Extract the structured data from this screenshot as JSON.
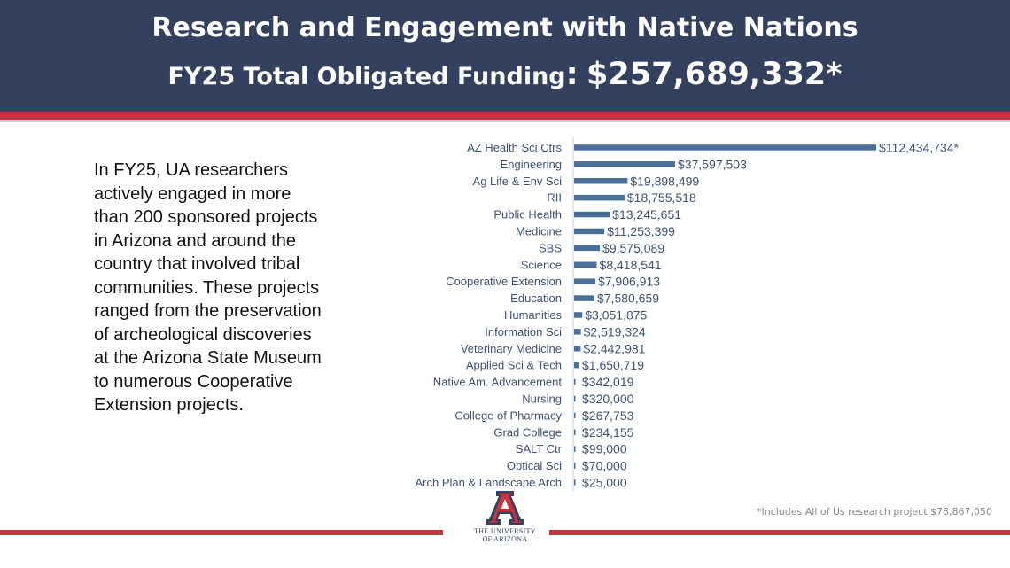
{
  "header": {
    "title": "Research and Engagement with Native Nations",
    "subtitle_prefix": "FY25 Total Obligated Funding",
    "subtitle_colon": ":",
    "subtitle_amount": "$257,689,332*"
  },
  "intro_text": "In FY25, UA researchers actively engaged in more than 200 sponsored projects in Arizona and around the country that involved tribal communities. These projects ranged from the preservation of archeological discoveries at the Arizona State Museum to numerous Cooperative Extension projects.",
  "footnote": "*Includes All of Us research project $78,867,050",
  "logo": {
    "letter": "A",
    "line1": "THE UNIVERSITY",
    "line2": "OF ARIZONA"
  },
  "colors": {
    "header_bg": "#33415f",
    "accent_red": "#c8333f",
    "bar": "#4a6f98",
    "label_text": "#3f5274"
  },
  "chart_data": {
    "type": "bar",
    "orientation": "horizontal",
    "categories": [
      "AZ Health Sci Ctrs",
      "Engineering",
      "Ag Life & Env Sci",
      "RII",
      "Public Health",
      "Medicine",
      "SBS",
      "Science",
      "Cooperative Extension",
      "Education",
      "Humanities",
      "Information Sci",
      "Veterinary Medicine",
      "Applied Sci & Tech",
      "Native Am. Advancement",
      "Nursing",
      "College of Pharmacy",
      "Grad College",
      "SALT Ctr",
      "Optical Sci",
      "Arch Plan & Landscape Arch"
    ],
    "values": [
      112434734,
      37597503,
      19898499,
      18755518,
      13245651,
      11253399,
      9575089,
      8418541,
      7906913,
      7580659,
      3051875,
      2519324,
      2442981,
      1650719,
      342019,
      320000,
      267753,
      234155,
      99000,
      70000,
      25000
    ],
    "value_labels": [
      "$112,434,734*",
      "$37,597,503",
      "$19,898,499",
      "$18,755,518",
      "$13,245,651",
      "$11,253,399",
      "$9,575,089",
      "$8,418,541",
      "$7,906,913",
      "$7,580,659",
      "$3,051,875",
      "$2,519,324",
      "$2,442,981",
      "$1,650,719",
      "$342,019",
      "$320,000",
      "$267,753",
      "$234,155",
      "$99,000",
      "$70,000",
      "$25,000"
    ],
    "title": "",
    "xlabel": "",
    "ylabel": "",
    "grid": false,
    "legend": "none"
  }
}
